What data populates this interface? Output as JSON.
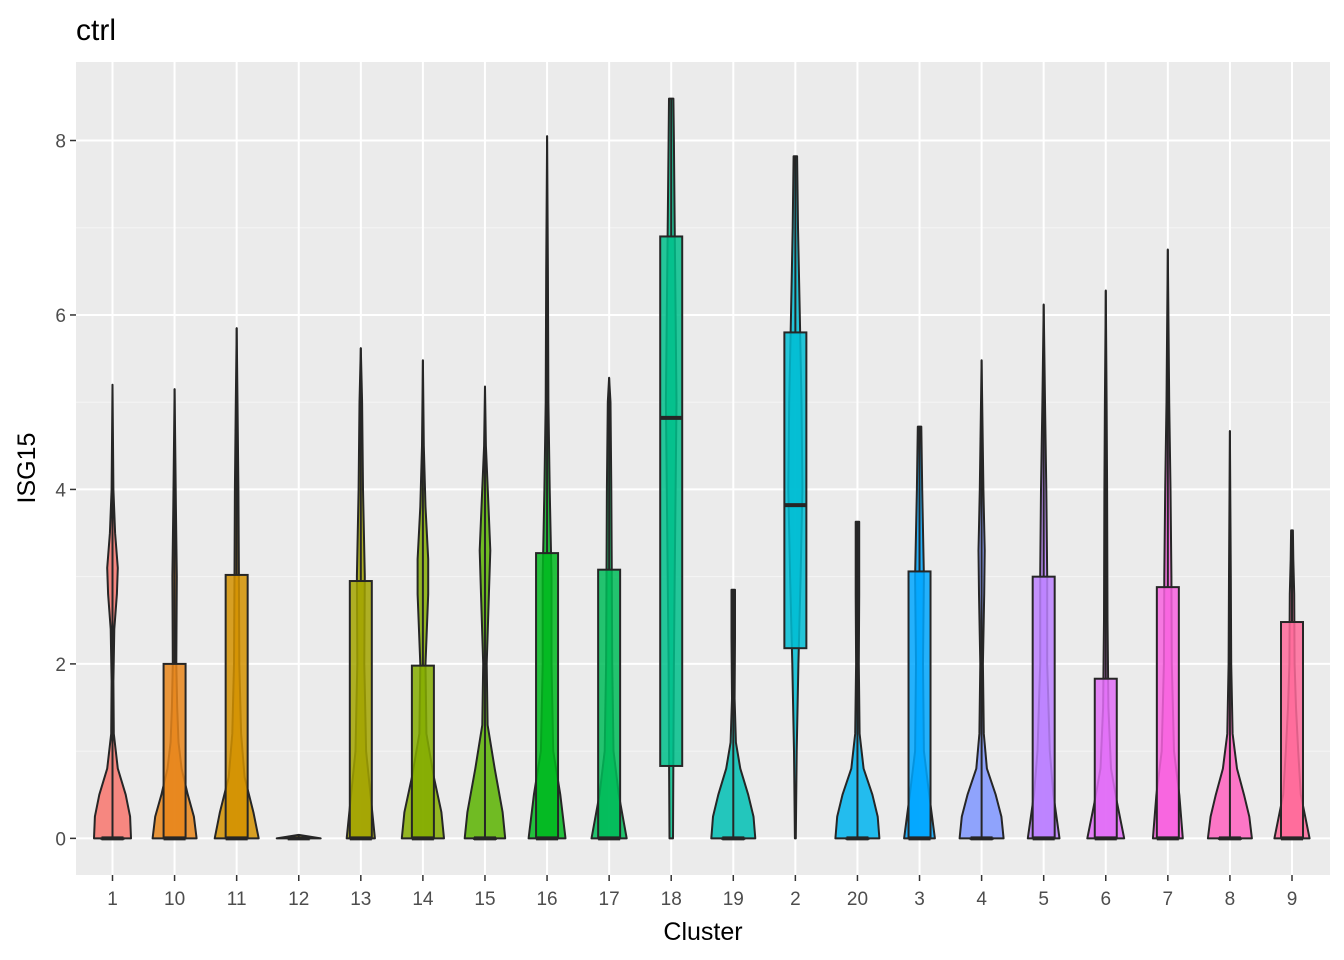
{
  "chart_data": {
    "type": "violin",
    "title": "ctrl",
    "xlabel": "Cluster",
    "ylabel": "ISG15",
    "ylim": [
      -0.42,
      8.9
    ],
    "yticks": [
      0,
      2,
      4,
      6,
      8
    ],
    "grid": true,
    "legend": "none",
    "categories": [
      "1",
      "10",
      "11",
      "12",
      "13",
      "14",
      "15",
      "16",
      "17",
      "18",
      "19",
      "2",
      "20",
      "3",
      "4",
      "5",
      "6",
      "7",
      "8",
      "9"
    ],
    "colors": [
      "#F8766D",
      "#E7861B",
      "#D39200",
      "#BB9D00",
      "#A3A500",
      "#85AD00",
      "#5BB300",
      "#00B81F",
      "#00BC59",
      "#00C08B",
      "#00C0B4",
      "#00BDD4",
      "#00B4EF",
      "#00A7FF",
      "#7F96FF",
      "#BC81FF",
      "#E26EF7",
      "#F863DF",
      "#FF62BF",
      "#FF6A9A"
    ],
    "series": [
      {
        "cluster": "1",
        "max": 5.2,
        "violin": [
          [
            0,
            0.42
          ],
          [
            0.25,
            0.4
          ],
          [
            0.5,
            0.3
          ],
          [
            0.8,
            0.12
          ],
          [
            1.2,
            0.03
          ],
          [
            1.8,
            0.02
          ],
          [
            2.4,
            0.04
          ],
          [
            2.8,
            0.1
          ],
          [
            3.1,
            0.12
          ],
          [
            3.5,
            0.06
          ],
          [
            4.0,
            0.02
          ],
          [
            5.2,
            0
          ]
        ],
        "box": {
          "q1": 0,
          "median": 0,
          "q3": 0
        }
      },
      {
        "cluster": "10",
        "max": 5.15,
        "violin": [
          [
            0,
            0.5
          ],
          [
            0.25,
            0.44
          ],
          [
            0.5,
            0.3
          ],
          [
            0.8,
            0.16
          ],
          [
            1.1,
            0.09
          ],
          [
            1.5,
            0.06
          ],
          [
            2.0,
            0.04
          ],
          [
            3.0,
            0.05
          ],
          [
            3.8,
            0.03
          ],
          [
            5.15,
            0
          ]
        ],
        "box": {
          "q1": 0,
          "median": 0,
          "q3": 2.0
        }
      },
      {
        "cluster": "11",
        "max": 5.85,
        "violin": [
          [
            0,
            0.5
          ],
          [
            0.3,
            0.38
          ],
          [
            0.7,
            0.18
          ],
          [
            1.2,
            0.1
          ],
          [
            2.0,
            0.06
          ],
          [
            3.0,
            0.05
          ],
          [
            4.0,
            0.04
          ],
          [
            5.0,
            0.02
          ],
          [
            5.85,
            0
          ]
        ],
        "box": {
          "q1": 0,
          "median": 0,
          "q3": 3.02
        }
      },
      {
        "cluster": "12",
        "max": 0.04,
        "violin": [
          [
            0,
            0.5
          ],
          [
            0.04,
            0
          ]
        ],
        "box": {
          "q1": 0,
          "median": 0,
          "q3": 0.01
        }
      },
      {
        "cluster": "13",
        "max": 5.62,
        "violin": [
          [
            0,
            0.32
          ],
          [
            0.5,
            0.22
          ],
          [
            1.0,
            0.12
          ],
          [
            2.0,
            0.08
          ],
          [
            3.0,
            0.09
          ],
          [
            4.0,
            0.05
          ],
          [
            5.0,
            0.03
          ],
          [
            5.62,
            0
          ]
        ],
        "box": {
          "q1": 0,
          "median": 0,
          "q3": 2.95
        }
      },
      {
        "cluster": "14",
        "max": 5.48,
        "violin": [
          [
            0,
            0.48
          ],
          [
            0.3,
            0.42
          ],
          [
            0.7,
            0.25
          ],
          [
            1.2,
            0.08
          ],
          [
            2.0,
            0.06
          ],
          [
            2.8,
            0.12
          ],
          [
            3.2,
            0.12
          ],
          [
            3.8,
            0.06
          ],
          [
            4.5,
            0.02
          ],
          [
            5.48,
            0
          ]
        ],
        "box": {
          "q1": 0,
          "median": 0,
          "q3": 1.98
        }
      },
      {
        "cluster": "15",
        "max": 5.18,
        "violin": [
          [
            0,
            0.46
          ],
          [
            0.3,
            0.4
          ],
          [
            0.8,
            0.22
          ],
          [
            1.3,
            0.06
          ],
          [
            2.0,
            0.04
          ],
          [
            2.8,
            0.09
          ],
          [
            3.3,
            0.12
          ],
          [
            3.8,
            0.08
          ],
          [
            4.5,
            0.02
          ],
          [
            5.18,
            0
          ]
        ],
        "box": {
          "q1": 0,
          "median": 0,
          "q3": 0
        }
      },
      {
        "cluster": "16",
        "max": 8.05,
        "violin": [
          [
            0,
            0.42
          ],
          [
            0.5,
            0.3
          ],
          [
            1.0,
            0.14
          ],
          [
            2.0,
            0.1
          ],
          [
            3.0,
            0.1
          ],
          [
            4.0,
            0.06
          ],
          [
            5.0,
            0.03
          ],
          [
            6.5,
            0.02
          ],
          [
            8.05,
            0
          ]
        ],
        "box": {
          "q1": 0,
          "median": 0,
          "q3": 3.27
        }
      },
      {
        "cluster": "17",
        "max": 5.28,
        "violin": [
          [
            0,
            0.4
          ],
          [
            0.5,
            0.22
          ],
          [
            1.0,
            0.1
          ],
          [
            2.0,
            0.07
          ],
          [
            3.0,
            0.06
          ],
          [
            4.0,
            0.05
          ],
          [
            5.0,
            0.03
          ],
          [
            5.28,
            0
          ]
        ],
        "box": {
          "q1": 0,
          "median": 0,
          "q3": 3.08
        }
      },
      {
        "cluster": "18",
        "max": 8.48,
        "violin": [
          [
            0,
            0.04
          ],
          [
            1.0,
            0.05
          ],
          [
            2.0,
            0.06
          ],
          [
            3.0,
            0.08
          ],
          [
            4.0,
            0.1
          ],
          [
            5.0,
            0.12
          ],
          [
            6.0,
            0.1
          ],
          [
            7.0,
            0.08
          ],
          [
            8.0,
            0.06
          ],
          [
            8.48,
            0.05
          ]
        ],
        "box": {
          "q1": 0.83,
          "median": 4.82,
          "q3": 6.9
        }
      },
      {
        "cluster": "19",
        "max": 2.85,
        "violin": [
          [
            0,
            0.5
          ],
          [
            0.25,
            0.46
          ],
          [
            0.5,
            0.34
          ],
          [
            0.8,
            0.16
          ],
          [
            1.1,
            0.06
          ],
          [
            1.6,
            0.03
          ],
          [
            2.3,
            0.04
          ],
          [
            2.85,
            0.04
          ]
        ],
        "box": {
          "q1": 0,
          "median": 0,
          "q3": 0
        }
      },
      {
        "cluster": "2",
        "max": 7.82,
        "violin": [
          [
            0,
            0.01
          ],
          [
            1.0,
            0.03
          ],
          [
            2.0,
            0.07
          ],
          [
            3.0,
            0.12
          ],
          [
            4.0,
            0.16
          ],
          [
            5.0,
            0.14
          ],
          [
            6.0,
            0.1
          ],
          [
            7.0,
            0.06
          ],
          [
            7.82,
            0.04
          ]
        ],
        "box": {
          "q1": 2.18,
          "median": 3.82,
          "q3": 5.8
        }
      },
      {
        "cluster": "20",
        "max": 3.63,
        "violin": [
          [
            0,
            0.5
          ],
          [
            0.25,
            0.46
          ],
          [
            0.5,
            0.34
          ],
          [
            0.8,
            0.14
          ],
          [
            1.2,
            0.05
          ],
          [
            2.0,
            0.03
          ],
          [
            2.8,
            0.04
          ],
          [
            3.63,
            0.04
          ]
        ],
        "box": {
          "q1": 0,
          "median": 0,
          "q3": 0
        }
      },
      {
        "cluster": "3",
        "max": 4.72,
        "violin": [
          [
            0,
            0.35
          ],
          [
            0.5,
            0.22
          ],
          [
            1.0,
            0.1
          ],
          [
            2.0,
            0.08
          ],
          [
            3.0,
            0.1
          ],
          [
            4.0,
            0.06
          ],
          [
            4.72,
            0.04
          ]
        ],
        "box": {
          "q1": 0,
          "median": 0,
          "q3": 3.06
        }
      },
      {
        "cluster": "4",
        "max": 5.48,
        "violin": [
          [
            0,
            0.5
          ],
          [
            0.25,
            0.45
          ],
          [
            0.5,
            0.32
          ],
          [
            0.8,
            0.12
          ],
          [
            1.2,
            0.05
          ],
          [
            2.0,
            0.03
          ],
          [
            2.8,
            0.06
          ],
          [
            3.3,
            0.07
          ],
          [
            4.0,
            0.04
          ],
          [
            5.48,
            0
          ]
        ],
        "box": {
          "q1": 0,
          "median": 0,
          "q3": 0
        }
      },
      {
        "cluster": "5",
        "max": 6.12,
        "violin": [
          [
            0,
            0.36
          ],
          [
            0.5,
            0.22
          ],
          [
            1.0,
            0.14
          ],
          [
            2.0,
            0.08
          ],
          [
            3.0,
            0.08
          ],
          [
            4.0,
            0.06
          ],
          [
            5.0,
            0.03
          ],
          [
            6.12,
            0
          ]
        ],
        "box": {
          "q1": 0,
          "median": 0,
          "q3": 3.0
        }
      },
      {
        "cluster": "6",
        "max": 6.28,
        "violin": [
          [
            0,
            0.42
          ],
          [
            0.4,
            0.26
          ],
          [
            0.8,
            0.12
          ],
          [
            1.5,
            0.06
          ],
          [
            2.5,
            0.04
          ],
          [
            4.0,
            0.03
          ],
          [
            5.0,
            0.02
          ],
          [
            6.28,
            0
          ]
        ],
        "box": {
          "q1": 0,
          "median": 0,
          "q3": 1.83
        }
      },
      {
        "cluster": "7",
        "max": 6.75,
        "violin": [
          [
            0,
            0.34
          ],
          [
            0.5,
            0.26
          ],
          [
            1.0,
            0.14
          ],
          [
            2.0,
            0.09
          ],
          [
            3.0,
            0.08
          ],
          [
            4.0,
            0.06
          ],
          [
            5.0,
            0.03
          ],
          [
            6.75,
            0
          ]
        ],
        "box": {
          "q1": 0,
          "median": 0,
          "q3": 2.88
        }
      },
      {
        "cluster": "8",
        "max": 4.67,
        "violin": [
          [
            0,
            0.5
          ],
          [
            0.25,
            0.44
          ],
          [
            0.5,
            0.32
          ],
          [
            0.8,
            0.16
          ],
          [
            1.2,
            0.06
          ],
          [
            2.0,
            0.03
          ],
          [
            3.0,
            0.02
          ],
          [
            4.67,
            0
          ]
        ],
        "box": {
          "q1": 0,
          "median": 0,
          "q3": 0
        }
      },
      {
        "cluster": "9",
        "max": 3.53,
        "violin": [
          [
            0,
            0.4
          ],
          [
            0.5,
            0.2
          ],
          [
            1.0,
            0.14
          ],
          [
            1.5,
            0.09
          ],
          [
            2.0,
            0.06
          ],
          [
            2.8,
            0.05
          ],
          [
            3.2,
            0.03
          ],
          [
            3.53,
            0.02
          ]
        ],
        "box": {
          "q1": 0,
          "median": 0,
          "q3": 2.48
        }
      }
    ]
  }
}
